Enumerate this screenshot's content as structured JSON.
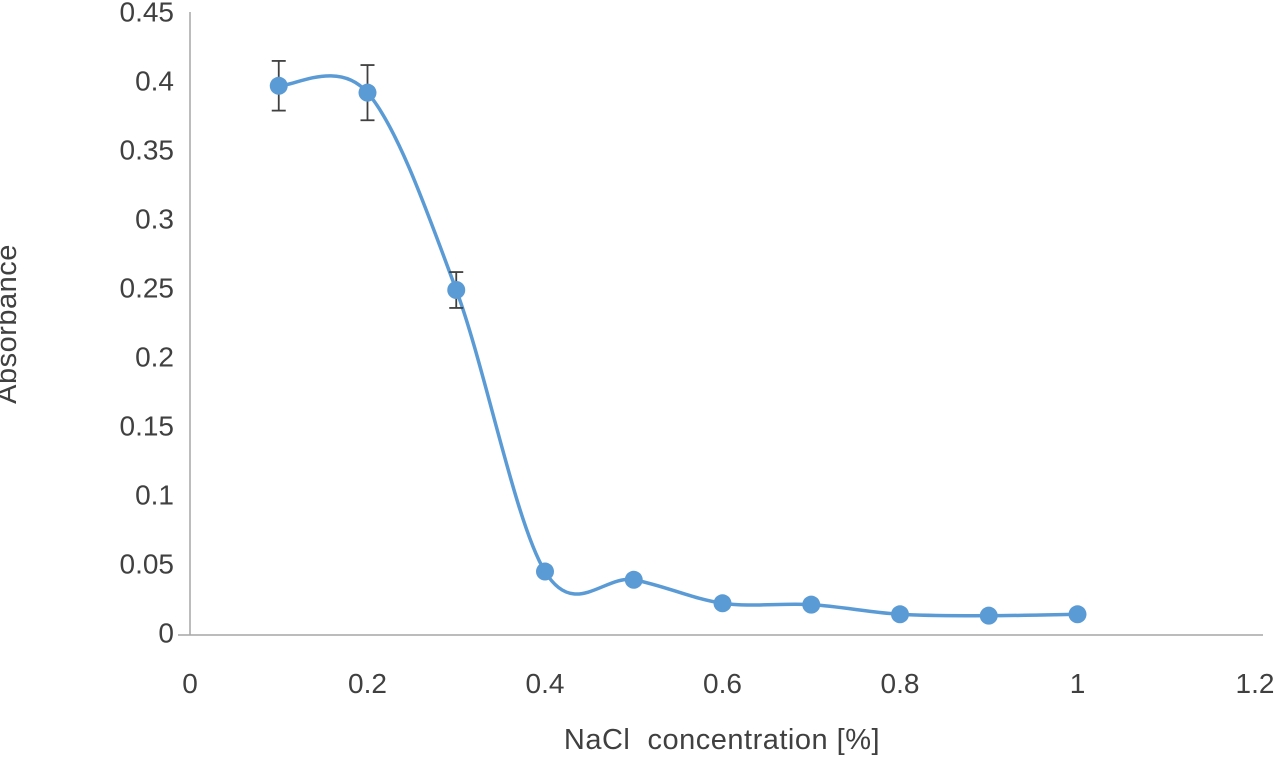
{
  "chart_data": {
    "type": "line",
    "title": "",
    "xlabel": "NaCl  concentration [%]",
    "ylabel": "Absorbance",
    "x": [
      0.1,
      0.2,
      0.3,
      0.4,
      0.5,
      0.6,
      0.7,
      0.8,
      0.9,
      1.0
    ],
    "y": [
      0.398,
      0.393,
      0.25,
      0.046,
      0.04,
      0.023,
      0.022,
      0.015,
      0.014,
      0.015
    ],
    "errors": [
      0.018,
      0.02,
      0.013,
      0,
      0,
      0,
      0,
      0,
      0,
      0
    ],
    "xlim": [
      0,
      1.2
    ],
    "ylim": [
      0,
      0.45
    ],
    "x_ticks": [
      0,
      0.2,
      0.4,
      0.6,
      0.8,
      1,
      1.2
    ],
    "x_tick_labels": [
      "0",
      "0.2",
      "0.4",
      "0.6",
      "0.8",
      "1",
      "1.2"
    ],
    "y_ticks": [
      0,
      0.05,
      0.1,
      0.15,
      0.2,
      0.25,
      0.3,
      0.35,
      0.4,
      0.45
    ],
    "y_tick_labels": [
      "0",
      "0.05",
      "0.1",
      "0.15",
      "0.2",
      "0.25",
      "0.3",
      "0.35",
      "0.4",
      "0.45"
    ],
    "smooth": true,
    "grid": false,
    "legend": false,
    "colors": {
      "line": "#5B9BD5",
      "marker": "#5B9BD5",
      "error_bar": "#404040",
      "axis_line": "#A6A6A6",
      "text": "#404040",
      "background": "#FFFFFF"
    }
  }
}
